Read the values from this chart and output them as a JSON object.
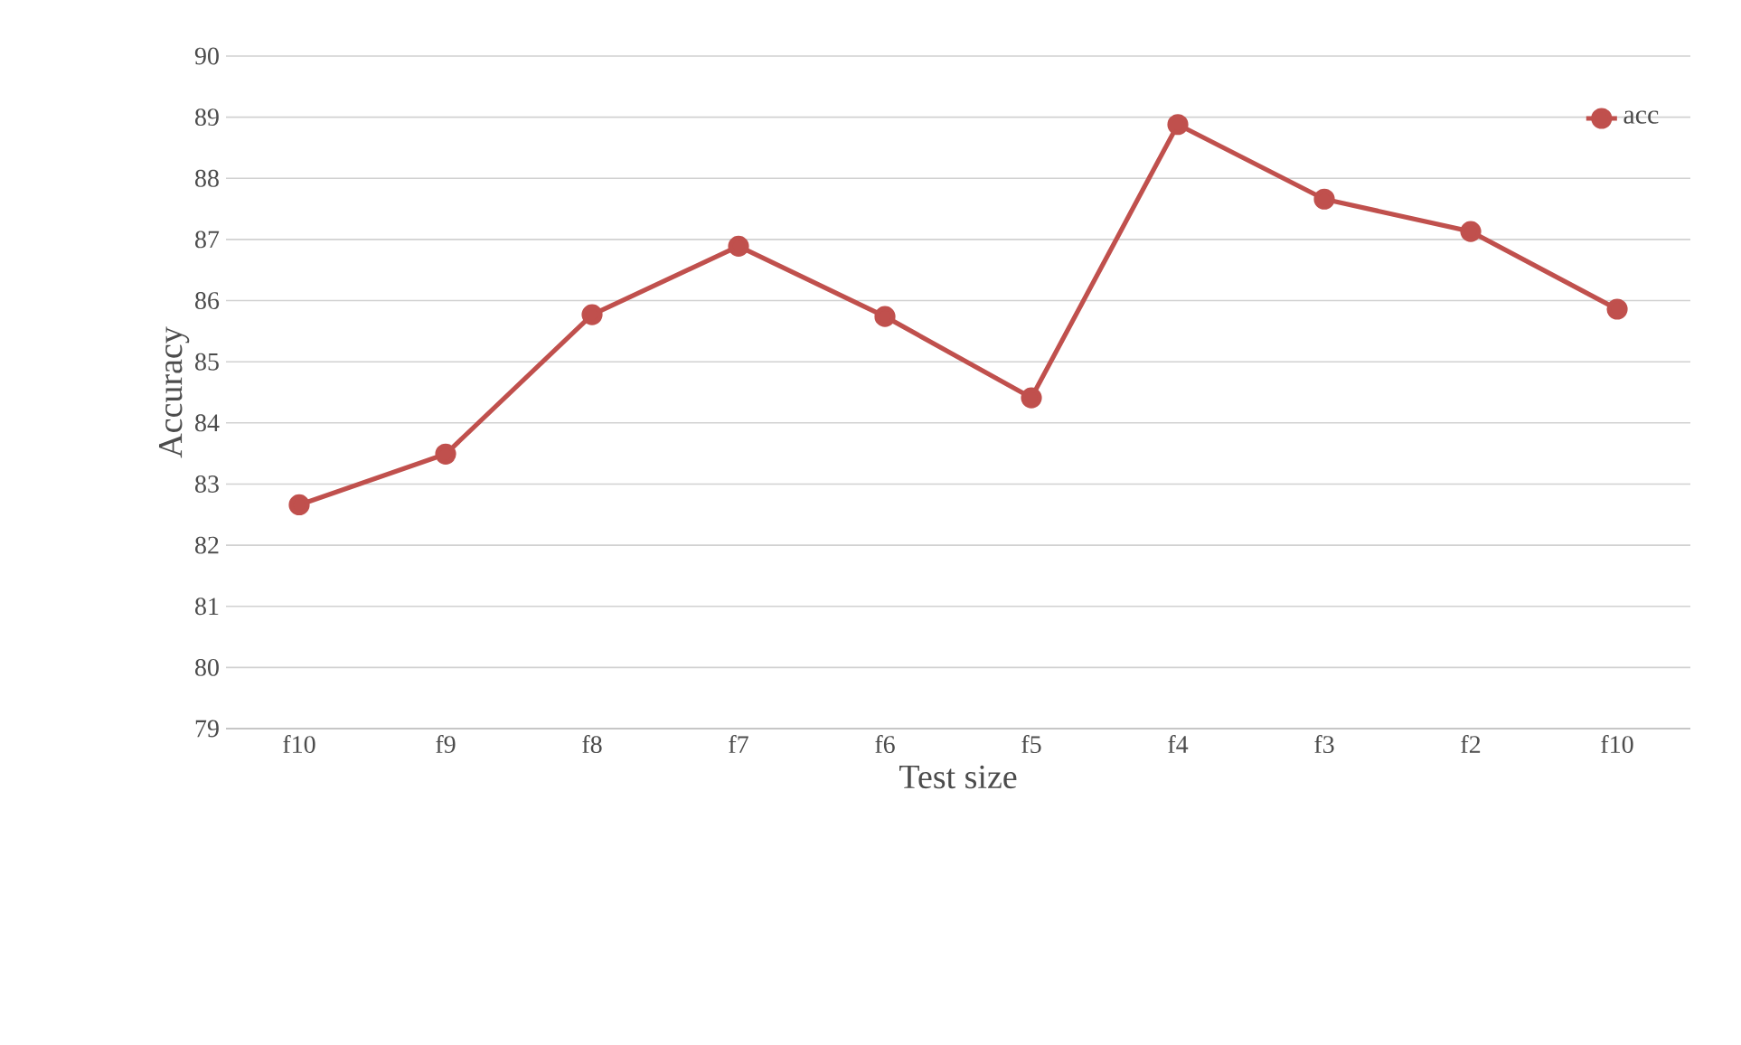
{
  "chart_data": {
    "type": "line",
    "xlabel": "Test size",
    "ylabel": "Accuracy",
    "categories": [
      "f10",
      "f9",
      "f8",
      "f7",
      "f6",
      "f5",
      "f4",
      "f3",
      "f2",
      "f10"
    ],
    "series": [
      {
        "name": "acc",
        "color": "#c0504d",
        "values": [
          82.66,
          83.49,
          85.77,
          86.89,
          85.74,
          84.41,
          88.88,
          87.66,
          87.13,
          85.86
        ]
      }
    ],
    "ylim": [
      79,
      90
    ],
    "yticks": [
      79,
      80,
      81,
      82,
      83,
      84,
      85,
      86,
      87,
      88,
      89,
      90
    ],
    "grid": "y",
    "legend": "top right",
    "marker": "circle",
    "line_style": "solid"
  }
}
